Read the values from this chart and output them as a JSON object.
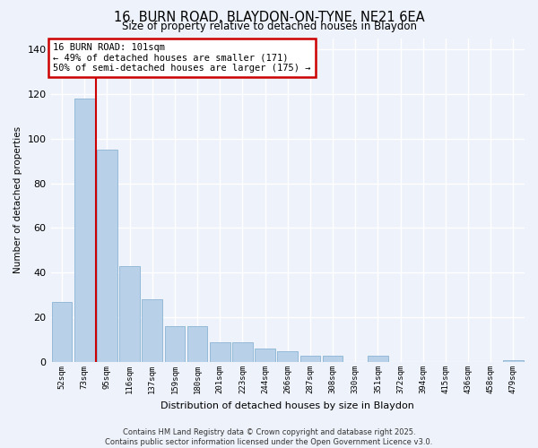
{
  "title1": "16, BURN ROAD, BLAYDON-ON-TYNE, NE21 6EA",
  "title2": "Size of property relative to detached houses in Blaydon",
  "xlabel": "Distribution of detached houses by size in Blaydon",
  "ylabel": "Number of detached properties",
  "categories": [
    "52sqm",
    "73sqm",
    "95sqm",
    "116sqm",
    "137sqm",
    "159sqm",
    "180sqm",
    "201sqm",
    "223sqm",
    "244sqm",
    "266sqm",
    "287sqm",
    "308sqm",
    "330sqm",
    "351sqm",
    "372sqm",
    "394sqm",
    "415sqm",
    "436sqm",
    "458sqm",
    "479sqm"
  ],
  "values": [
    27,
    118,
    95,
    43,
    28,
    16,
    16,
    9,
    9,
    6,
    5,
    3,
    3,
    0,
    3,
    0,
    0,
    0,
    0,
    0,
    1
  ],
  "bar_color": "#b8d0e8",
  "bar_edge_color": "#8ab4d4",
  "red_line_index": 2,
  "annotation_text": "16 BURN ROAD: 101sqm\n← 49% of detached houses are smaller (171)\n50% of semi-detached houses are larger (175) →",
  "annotation_box_color": "#ffffff",
  "annotation_box_edge": "#cc0000",
  "ylim": [
    0,
    145
  ],
  "yticks": [
    0,
    20,
    40,
    60,
    80,
    100,
    120,
    140
  ],
  "background_color": "#eef2fa",
  "grid_color": "#ffffff",
  "footer1": "Contains HM Land Registry data © Crown copyright and database right 2025.",
  "footer2": "Contains public sector information licensed under the Open Government Licence v3.0."
}
